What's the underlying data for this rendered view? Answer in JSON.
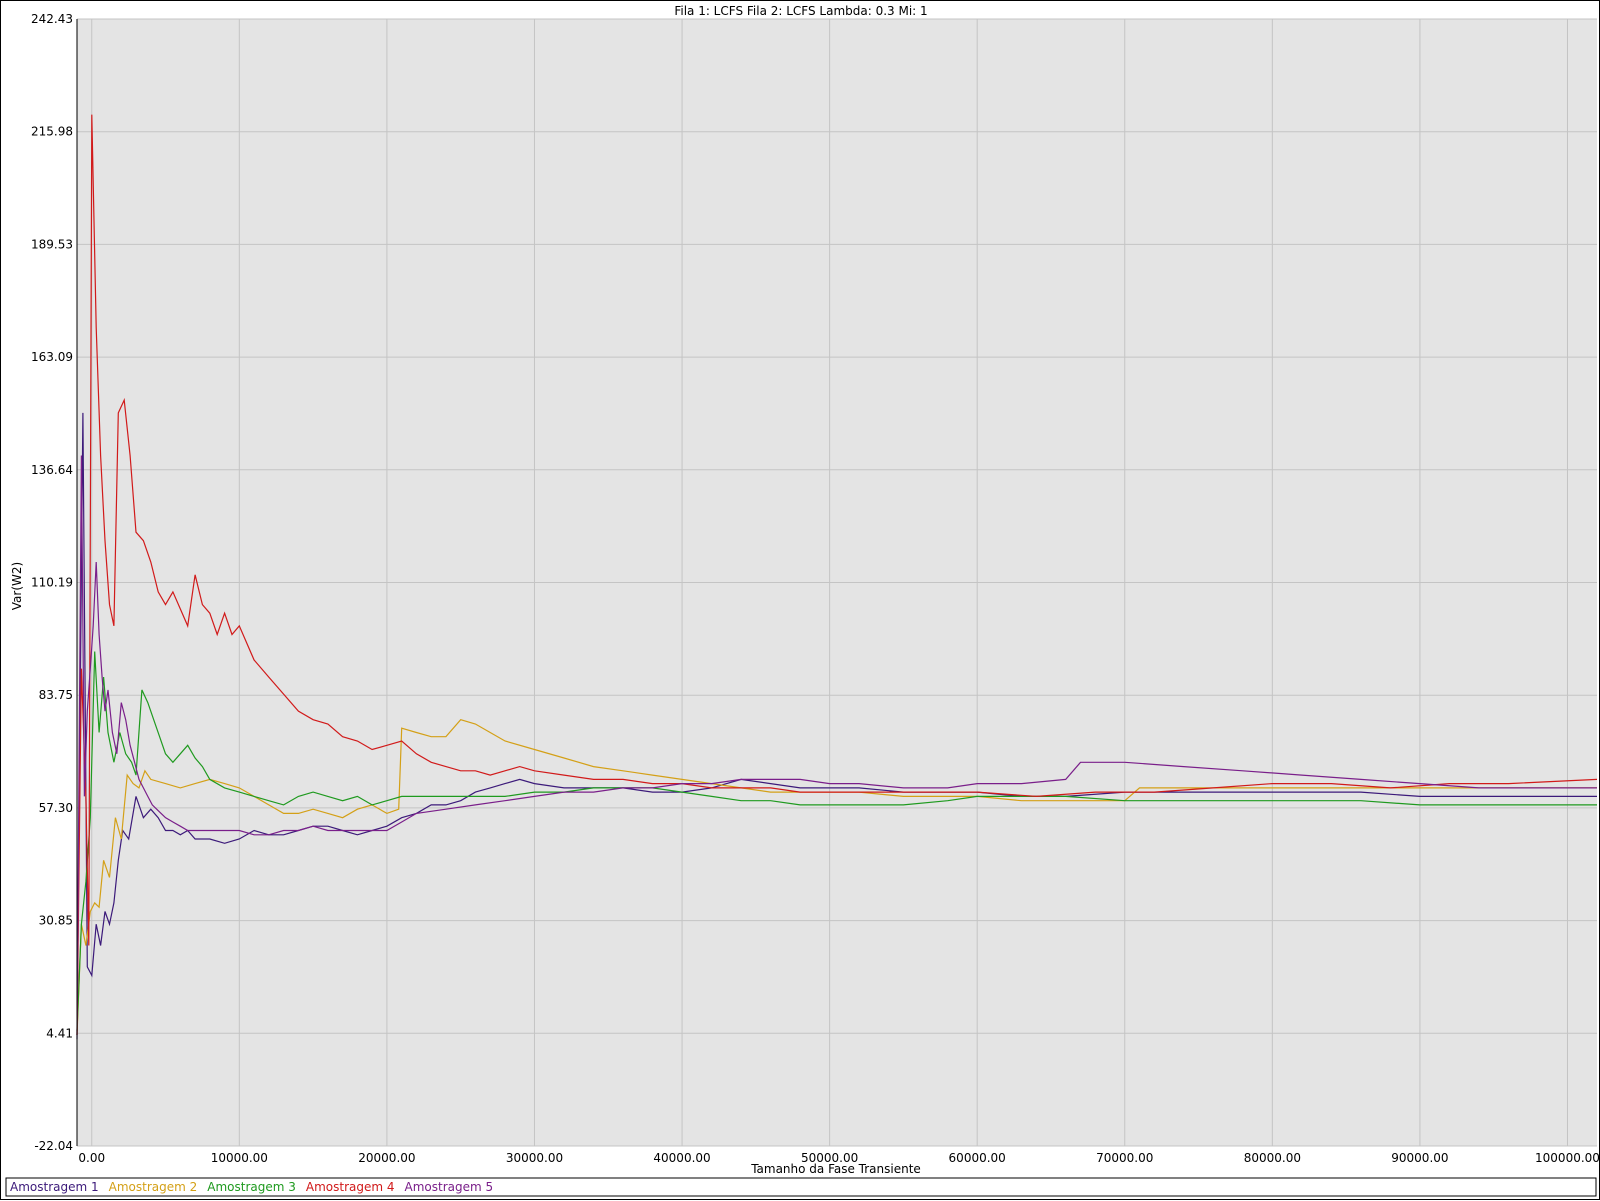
{
  "chart_data": {
    "type": "line",
    "title": "Fila 1: LCFS Fila 2: LCFS Lambda: 0.3 Mi: 1",
    "xlabel": "Tamanho da Fase Transiente",
    "ylabel": "Var(W2)",
    "xlim": [
      -1000,
      102000
    ],
    "ylim": [
      -22.04,
      242.43
    ],
    "x_ticks": [
      0,
      10000,
      20000,
      30000,
      40000,
      50000,
      60000,
      70000,
      80000,
      90000,
      100000
    ],
    "x_tick_labels": [
      "0.00",
      "10000.00",
      "20000.00",
      "30000.00",
      "40000.00",
      "50000.00",
      "60000.00",
      "70000.00",
      "80000.00",
      "90000.00",
      "100000.00"
    ],
    "y_ticks": [
      -22.04,
      4.41,
      30.85,
      57.3,
      83.75,
      110.19,
      136.64,
      163.09,
      189.53,
      215.98,
      242.43
    ],
    "y_tick_labels": [
      "-22.04",
      "4.41",
      "30.85",
      "57.30",
      "83.75",
      "110.19",
      "136.64",
      "163.09",
      "189.53",
      "215.98",
      "242.43"
    ],
    "grid": true,
    "legend_position": "bottom",
    "series": [
      {
        "name": "Amostragem 1",
        "color": "#3c1a7a",
        "x": [
          -1000,
          -600,
          -300,
          0,
          300,
          600,
          900,
          1200,
          1500,
          1800,
          2100,
          2500,
          3000,
          3500,
          4000,
          4500,
          5000,
          5500,
          6000,
          6500,
          7000,
          8000,
          9000,
          10000,
          11000,
          12000,
          13000,
          14000,
          15000,
          16000,
          17000,
          18000,
          19000,
          20000,
          21000,
          22000,
          23000,
          24000,
          25000,
          26000,
          27000,
          28000,
          29000,
          30000,
          32000,
          34000,
          36000,
          38000,
          40000,
          42000,
          44000,
          46000,
          48000,
          50000,
          52000,
          55000,
          58000,
          60000,
          63000,
          66000,
          70000,
          74000,
          78000,
          82000,
          86000,
          90000,
          94000,
          98000,
          102000
        ],
        "y": [
          3,
          150,
          20,
          18,
          30,
          25,
          33,
          30,
          35,
          45,
          52,
          50,
          60,
          55,
          57,
          55,
          52,
          52,
          51,
          52,
          50,
          50,
          49,
          50,
          52,
          51,
          51,
          52,
          53,
          53,
          52,
          51,
          52,
          53,
          55,
          56,
          58,
          58,
          59,
          61,
          62,
          63,
          64,
          63,
          62,
          62,
          62,
          61,
          61,
          62,
          64,
          63,
          62,
          62,
          62,
          61,
          61,
          61,
          60,
          60,
          61,
          61,
          61,
          61,
          61,
          60,
          60,
          60,
          60
        ]
      },
      {
        "name": "Amostragem 2",
        "color": "#d4a017",
        "x": [
          -1000,
          -700,
          -400,
          -100,
          200,
          500,
          800,
          1200,
          1600,
          2000,
          2400,
          2800,
          3200,
          3600,
          4000,
          5000,
          6000,
          7000,
          8000,
          9000,
          10000,
          11000,
          12000,
          13000,
          14000,
          15000,
          16000,
          17000,
          18000,
          19000,
          20000,
          20800,
          21000,
          22000,
          23000,
          24000,
          25000,
          26000,
          27000,
          28000,
          30000,
          32000,
          34000,
          36000,
          38000,
          40000,
          42000,
          44000,
          46000,
          48000,
          50000,
          52000,
          55000,
          58000,
          60000,
          63000,
          66000,
          70000,
          71000,
          74000,
          78000,
          82000,
          86000,
          90000,
          94000,
          98000,
          102000
        ],
        "y": [
          4,
          30,
          25,
          33,
          35,
          34,
          45,
          41,
          55,
          50,
          65,
          63,
          62,
          66,
          64,
          63,
          62,
          63,
          64,
          63,
          62,
          60,
          58,
          56,
          56,
          57,
          56,
          55,
          57,
          58,
          56,
          57,
          76,
          75,
          74,
          74,
          78,
          77,
          75,
          73,
          71,
          69,
          67,
          66,
          65,
          64,
          63,
          62,
          61,
          61,
          61,
          61,
          60,
          60,
          60,
          59,
          59,
          59,
          62,
          62,
          62,
          62,
          62,
          62,
          62,
          62,
          62
        ]
      },
      {
        "name": "Amostragem 3",
        "color": "#1f9a1f",
        "x": [
          -1000,
          -700,
          -400,
          -100,
          200,
          500,
          800,
          1100,
          1500,
          1900,
          2300,
          2700,
          3000,
          3400,
          3800,
          4200,
          4600,
          5000,
          5500,
          6000,
          6500,
          7000,
          7500,
          8000,
          9000,
          10000,
          11000,
          12000,
          13000,
          14000,
          15000,
          16000,
          17000,
          18000,
          19000,
          20000,
          21000,
          22000,
          24000,
          26000,
          28000,
          30000,
          32000,
          34000,
          36000,
          38000,
          40000,
          42000,
          44000,
          46000,
          48000,
          50000,
          52000,
          55000,
          58000,
          60000,
          63000,
          66000,
          70000,
          74000,
          78000,
          82000,
          86000,
          90000,
          94000,
          98000,
          102000
        ],
        "y": [
          5,
          30,
          40,
          55,
          94,
          75,
          88,
          75,
          68,
          75,
          70,
          68,
          65,
          85,
          82,
          78,
          74,
          70,
          68,
          70,
          72,
          69,
          67,
          64,
          62,
          61,
          60,
          59,
          58,
          60,
          61,
          60,
          59,
          60,
          58,
          59,
          60,
          60,
          60,
          60,
          60,
          61,
          61,
          62,
          62,
          62,
          61,
          60,
          59,
          59,
          58,
          58,
          58,
          58,
          59,
          60,
          60,
          60,
          59,
          59,
          59,
          59,
          59,
          58,
          58,
          58,
          58
        ]
      },
      {
        "name": "Amostragem 4",
        "color": "#d11a1a",
        "x": [
          -1000,
          -700,
          -400,
          -200,
          0,
          300,
          600,
          900,
          1200,
          1500,
          1800,
          2200,
          2600,
          3000,
          3500,
          4000,
          4500,
          5000,
          5500,
          6000,
          6500,
          7000,
          7500,
          8000,
          8500,
          9000,
          9500,
          10000,
          11000,
          12000,
          13000,
          14000,
          15000,
          16000,
          17000,
          18000,
          19000,
          20000,
          21000,
          22000,
          23000,
          24000,
          25000,
          26000,
          27000,
          28000,
          29000,
          30000,
          32000,
          34000,
          36000,
          38000,
          40000,
          42000,
          44000,
          46000,
          48000,
          50000,
          53000,
          56000,
          60000,
          64000,
          68000,
          72000,
          76000,
          80000,
          84000,
          88000,
          92000,
          96000,
          102000
        ],
        "y": [
          4,
          90,
          60,
          25,
          220,
          170,
          140,
          120,
          105,
          100,
          150,
          153,
          140,
          122,
          120,
          115,
          108,
          105,
          108,
          104,
          100,
          112,
          105,
          103,
          98,
          103,
          98,
          100,
          92,
          88,
          84,
          80,
          78,
          77,
          74,
          73,
          71,
          72,
          73,
          70,
          68,
          67,
          66,
          66,
          65,
          66,
          67,
          66,
          65,
          64,
          64,
          63,
          63,
          62,
          62,
          62,
          61,
          61,
          61,
          61,
          61,
          60,
          61,
          61,
          62,
          63,
          63,
          62,
          63,
          63,
          64
        ]
      },
      {
        "name": "Amostragem 5",
        "color": "#7a1f8a",
        "x": [
          -1000,
          -700,
          -500,
          -300,
          -100,
          100,
          300,
          500,
          700,
          900,
          1100,
          1400,
          1700,
          2000,
          2300,
          2600,
          2900,
          3200,
          3500,
          3800,
          4100,
          4400,
          4700,
          5000,
          5500,
          6000,
          6500,
          7000,
          8000,
          9000,
          10000,
          11000,
          12000,
          13000,
          14000,
          15000,
          16000,
          17000,
          18000,
          19000,
          20000,
          21000,
          22000,
          24000,
          26000,
          28000,
          30000,
          32000,
          34000,
          36000,
          38000,
          40000,
          42000,
          44000,
          46000,
          48000,
          50000,
          52000,
          55000,
          58000,
          60000,
          63000,
          66000,
          67000,
          70000,
          74000,
          78000,
          82000,
          86000,
          90000,
          94000,
          98000,
          102000
        ],
        "y": [
          4,
          140,
          60,
          80,
          90,
          100,
          115,
          98,
          88,
          80,
          85,
          75,
          70,
          82,
          78,
          72,
          68,
          64,
          62,
          60,
          58,
          57,
          56,
          55,
          54,
          53,
          52,
          52,
          52,
          52,
          52,
          51,
          51,
          52,
          52,
          53,
          52,
          52,
          52,
          52,
          52,
          54,
          56,
          57,
          58,
          59,
          60,
          61,
          61,
          62,
          62,
          63,
          63,
          64,
          64,
          64,
          63,
          63,
          62,
          62,
          63,
          63,
          64,
          68,
          68,
          67,
          66,
          65,
          64,
          63,
          62,
          62,
          62
        ]
      }
    ]
  }
}
